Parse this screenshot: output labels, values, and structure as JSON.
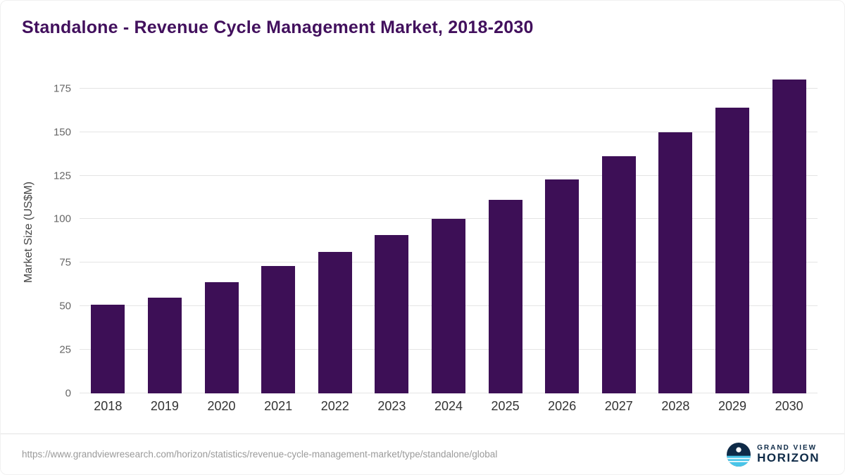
{
  "header": {
    "title": "Standalone - Revenue Cycle Management Market, 2018-2030"
  },
  "chart_data": {
    "type": "bar",
    "title": "Standalone - Revenue Cycle Management Market, 2018-2030",
    "categories": [
      "2018",
      "2019",
      "2020",
      "2021",
      "2022",
      "2023",
      "2024",
      "2025",
      "2026",
      "2027",
      "2028",
      "2029",
      "2030"
    ],
    "values": [
      51,
      55,
      64,
      73,
      81,
      91,
      100,
      111,
      123,
      136,
      150,
      164,
      180
    ],
    "xlabel": "",
    "ylabel": "Market Size (US$M)",
    "ylim": [
      0,
      185
    ],
    "yticks": [
      0,
      25,
      50,
      75,
      100,
      125,
      150,
      175
    ],
    "grid": "horizontal",
    "legend": "none"
  },
  "footer": {
    "source_url": "https://www.grandviewresearch.com/horizon/statistics/revenue-cycle-management-market/type/standalone/global",
    "logo": {
      "line1": "GRAND VIEW",
      "line2": "HORIZON"
    }
  },
  "colors": {
    "bar": "#3d0f56",
    "title": "#42105d",
    "gridline": "#e4e4e4",
    "logo_navy": "#0e2a47",
    "logo_blue": "#49c5e9"
  }
}
